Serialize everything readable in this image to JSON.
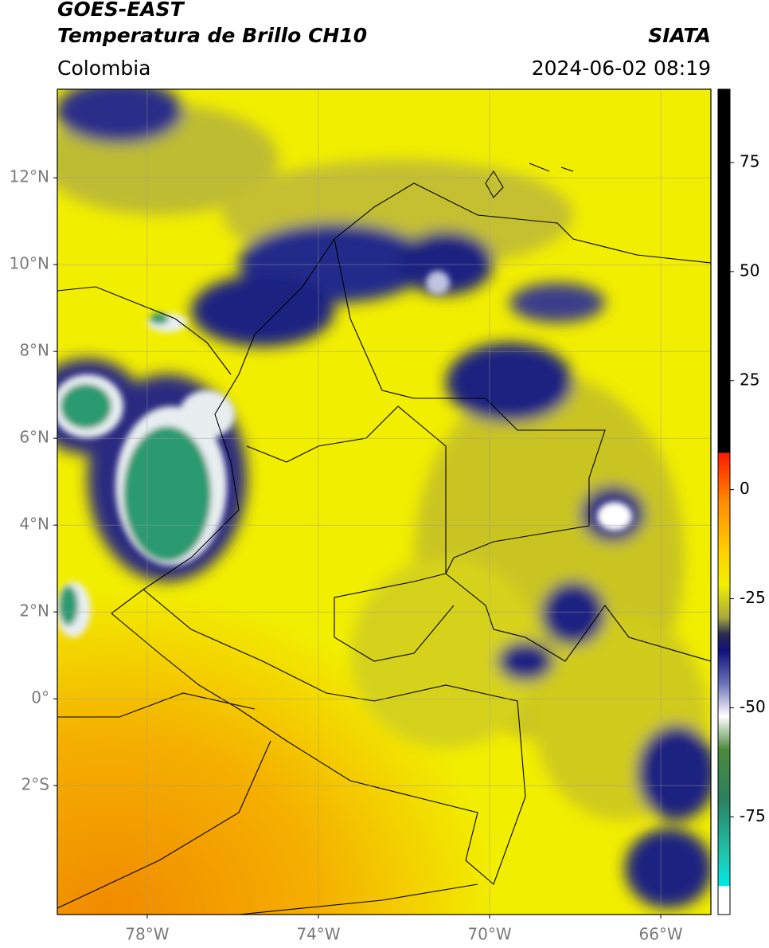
{
  "header": {
    "title": "GOES-EAST",
    "subtitle": "Temperatura de Brillo CH10",
    "source": "SIATA",
    "region": "Colombia",
    "datetime": "2024-06-02 08:19"
  },
  "map": {
    "xlim": [
      -80.1,
      -64.83
    ],
    "ylim": [
      -4.97,
      14.04
    ],
    "xticks": [
      {
        "value": -78,
        "label": "78°W"
      },
      {
        "value": -74,
        "label": "74°W"
      },
      {
        "value": -70,
        "label": "70°W"
      },
      {
        "value": -66,
        "label": "66°W"
      }
    ],
    "yticks": [
      {
        "value": 12,
        "label": "12°N"
      },
      {
        "value": 10,
        "label": "10°N"
      },
      {
        "value": 8,
        "label": "8°N"
      },
      {
        "value": 6,
        "label": "6°N"
      },
      {
        "value": 4,
        "label": "4°N"
      },
      {
        "value": 2,
        "label": "2°N"
      },
      {
        "value": 0,
        "label": "0°"
      },
      {
        "value": -2,
        "label": "2°S"
      }
    ],
    "grid": true
  },
  "colorbar": {
    "lim": [
      -97.4,
      91.8
    ],
    "ticks": [
      75,
      50,
      25,
      0,
      -25,
      -50,
      -75
    ]
  }
}
